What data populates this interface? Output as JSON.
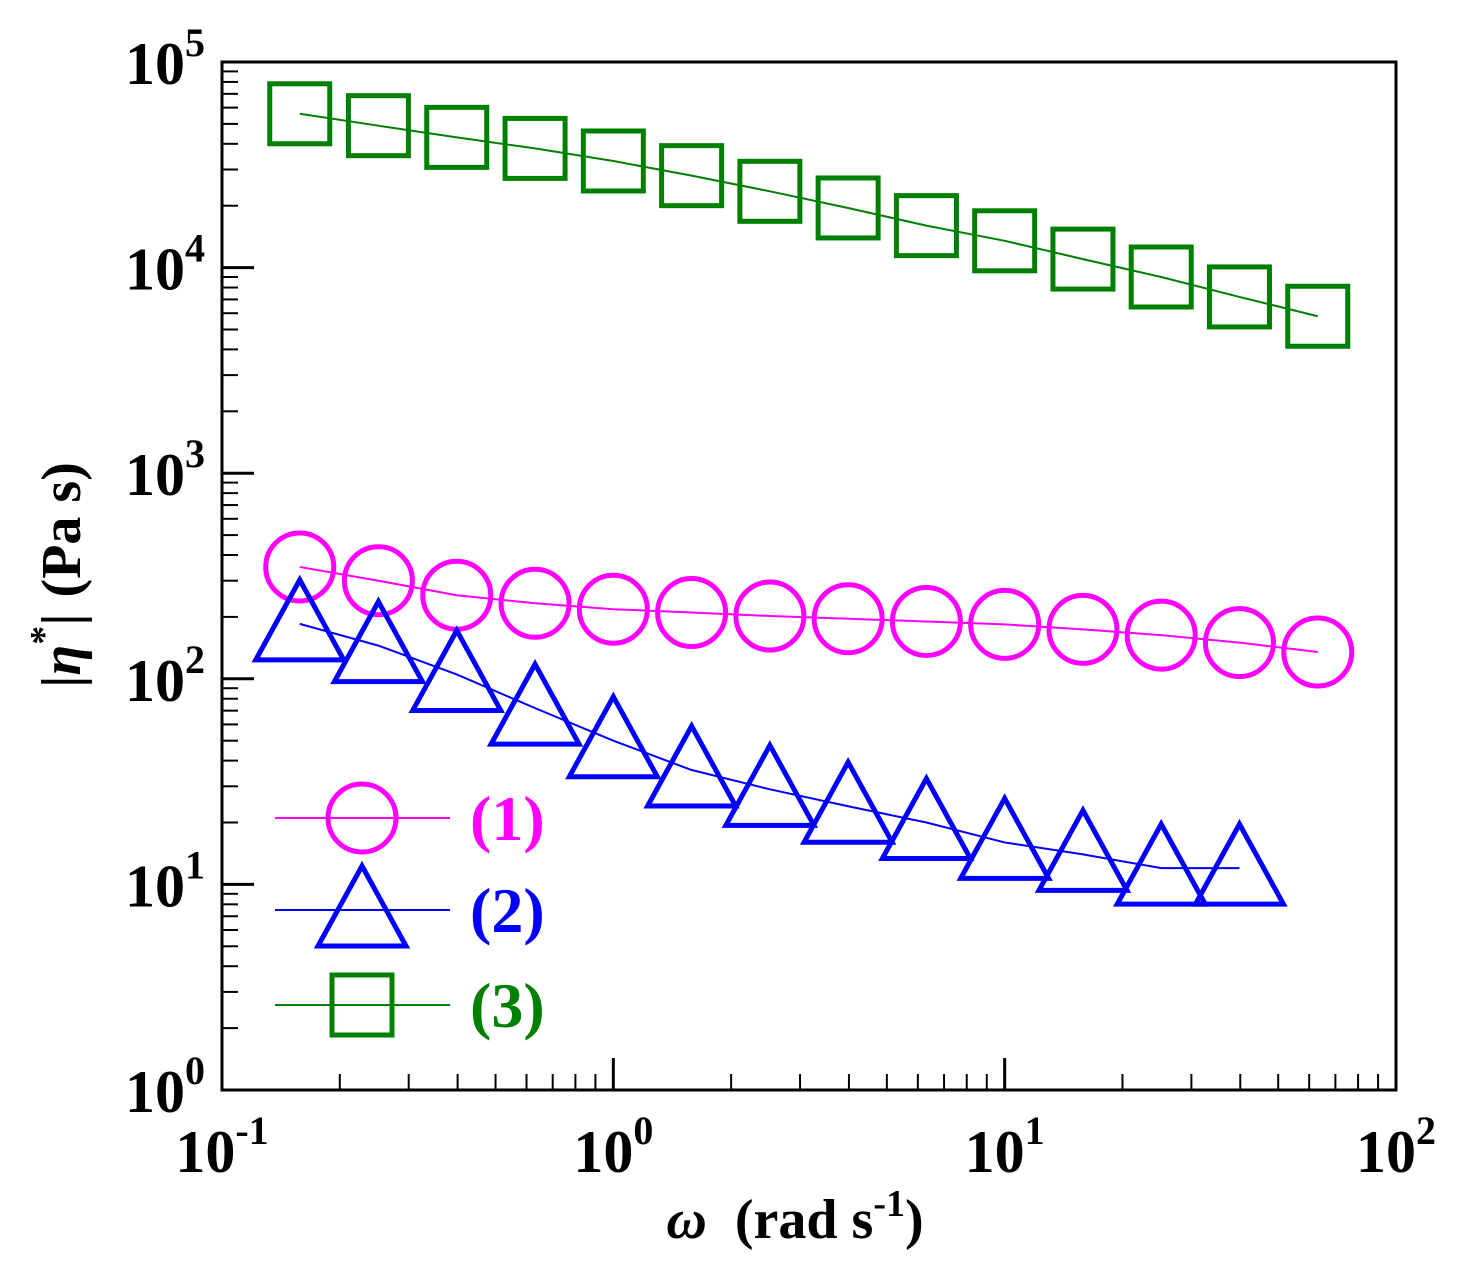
{
  "chart_data": {
    "type": "scatter",
    "title": "",
    "xlabel": {
      "symbol": "ω",
      "text": "(rad s",
      "sup": "-1",
      "close": ")"
    },
    "ylabel": {
      "open": "|",
      "symbol": "η",
      "sup": "*",
      "close": "|",
      "units": "(Pa s)"
    },
    "xscale": "log",
    "yscale": "log",
    "xlim": [
      0.1,
      100
    ],
    "ylim": [
      1,
      100000
    ],
    "x_ticks": [
      {
        "base": "10",
        "exp": "-1"
      },
      {
        "base": "10",
        "exp": "0"
      },
      {
        "base": "10",
        "exp": "1"
      },
      {
        "base": "10",
        "exp": "2"
      }
    ],
    "y_ticks": [
      {
        "base": "10",
        "exp": "0"
      },
      {
        "base": "10",
        "exp": "1"
      },
      {
        "base": "10",
        "exp": "2"
      },
      {
        "base": "10",
        "exp": "3"
      },
      {
        "base": "10",
        "exp": "4"
      },
      {
        "base": "10",
        "exp": "5"
      }
    ],
    "grid": false,
    "legend_position": "bottom-left",
    "series": [
      {
        "name": "(1)",
        "color": "#ff00ff",
        "marker": "circle",
        "x": [
          0.158,
          0.251,
          0.398,
          0.631,
          1.0,
          1.585,
          2.512,
          3.981,
          6.31,
          10.0,
          15.85,
          25.12,
          39.81,
          63.1
        ],
        "y": [
          350,
          300,
          255,
          233,
          218,
          210,
          202,
          196,
          190,
          184,
          174,
          163,
          150,
          135
        ]
      },
      {
        "name": "(2)",
        "color": "#0000ff",
        "marker": "triangle",
        "x": [
          0.158,
          0.251,
          0.398,
          0.631,
          1.0,
          1.585,
          2.512,
          3.981,
          6.31,
          10.0,
          15.85,
          25.12,
          39.81
        ],
        "y": [
          185,
          145,
          105,
          72,
          50,
          36,
          29,
          24,
          20,
          16,
          14,
          12,
          12
        ]
      },
      {
        "name": "(3)",
        "color": "#008000",
        "marker": "square",
        "x": [
          0.158,
          0.251,
          0.398,
          0.631,
          1.0,
          1.585,
          2.512,
          3.981,
          6.31,
          10.0,
          15.85,
          25.12,
          39.81,
          63.1
        ],
        "y": [
          56000,
          49000,
          43000,
          38000,
          33000,
          28000,
          23500,
          19500,
          16000,
          13500,
          11000,
          9000,
          7200,
          5800
        ]
      }
    ]
  }
}
